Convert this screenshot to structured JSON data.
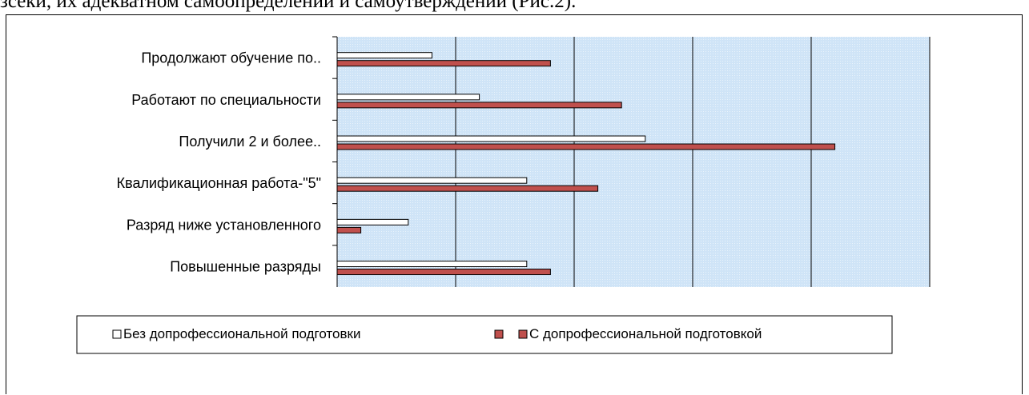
{
  "page": {
    "heading_fragment": "зсеки, их адекватном самоопределении и самоутверждении (Рис.2)."
  },
  "colors": {
    "plot_background": "#cfe4f7",
    "series1_fill": "#ffffff",
    "series2_fill": "#c0504d",
    "outline": "#000000",
    "gridline": "#000000"
  },
  "chart_data": {
    "type": "bar",
    "orientation": "horizontal",
    "categories": [
      "Продолжают обучение по..",
      "Работают по специальности",
      "Получили 2 и более..",
      "Квалификационная работа-\"5\"",
      "Разряд ниже установленного",
      "Повышенные разряды"
    ],
    "series": [
      {
        "name": "Без допрофессиональной подготовки",
        "values": [
          8,
          12,
          26,
          16,
          6,
          16
        ]
      },
      {
        "name": "С допрофессиональной подготовкой",
        "values": [
          18,
          24,
          42,
          22,
          2,
          18
        ]
      }
    ],
    "xlim": [
      0,
      50
    ],
    "x_gridlines": [
      10,
      20,
      30,
      40,
      50
    ],
    "x_tick_labels_visible": false,
    "grid": true,
    "legend": {
      "position": "bottom",
      "entries": [
        {
          "marker": "white",
          "label": "Без допрофессиональной подготовки"
        },
        {
          "marker": "red",
          "label": ""
        },
        {
          "marker": "red",
          "label": "С допрофессиональной подготовкой"
        }
      ]
    }
  }
}
